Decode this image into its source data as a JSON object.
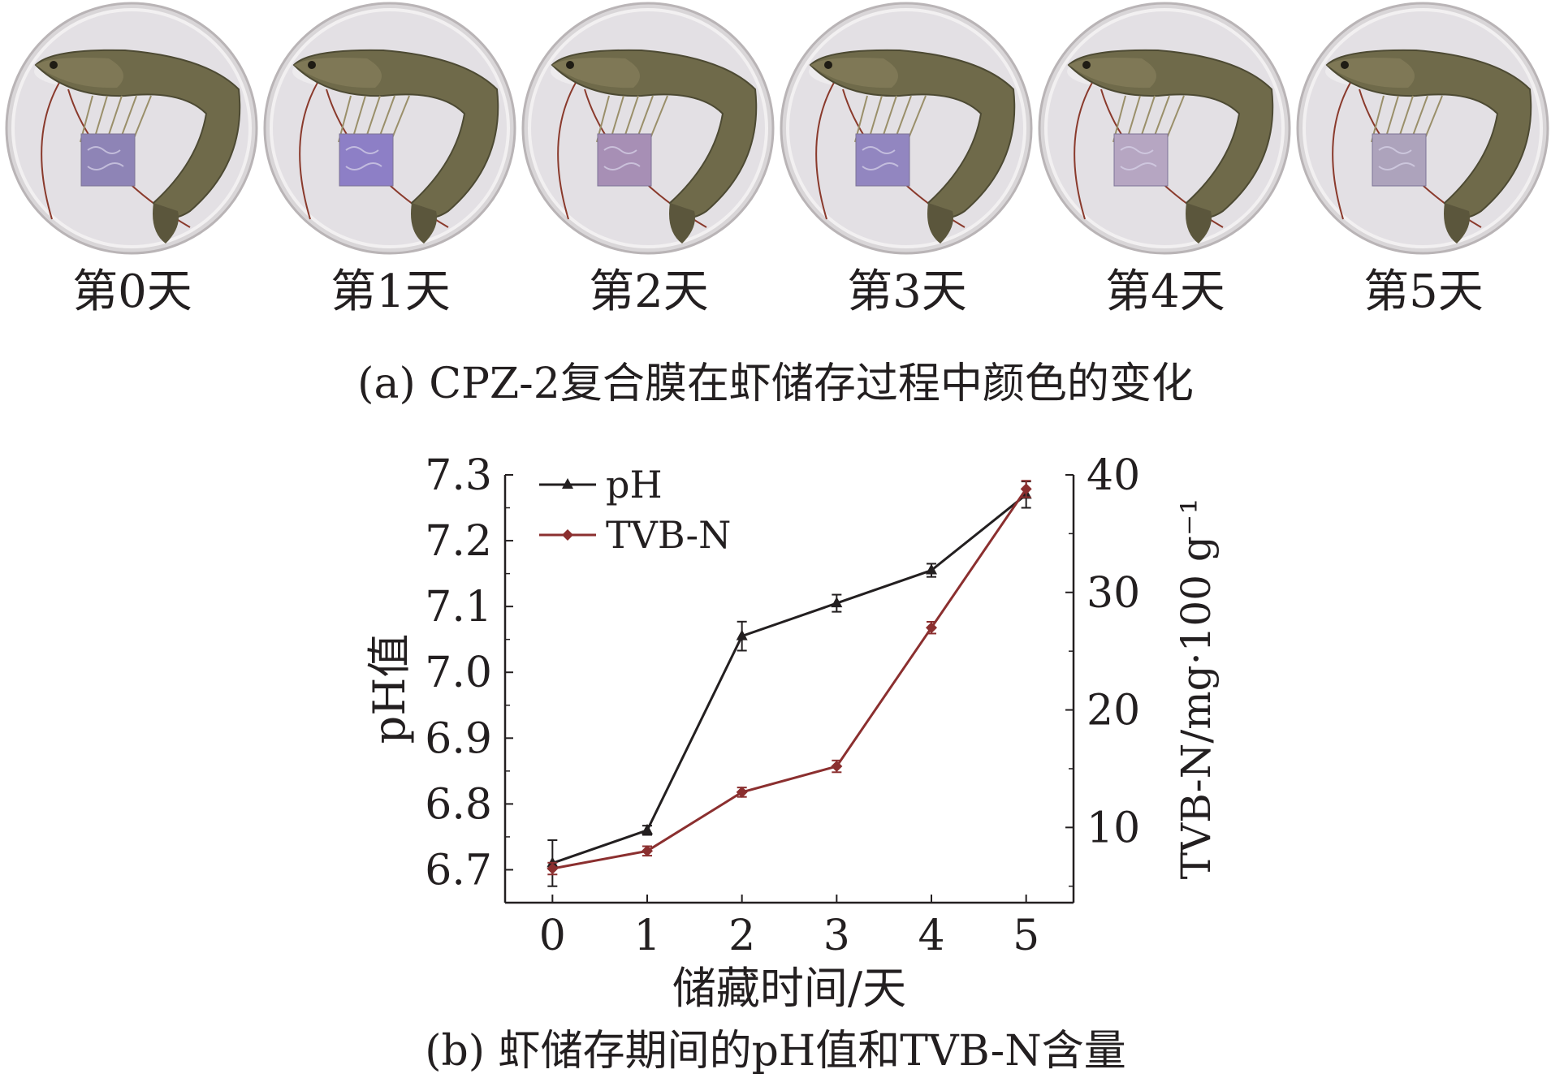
{
  "panel_a": {
    "caption": "(a) CPZ-2复合膜在虾储存过程中颜色的变化",
    "days": [
      {
        "label": "第0天",
        "film_color": "#8e84b6"
      },
      {
        "label": "第1天",
        "film_color": "#8d7fc6"
      },
      {
        "label": "第2天",
        "film_color": "#a78fb5"
      },
      {
        "label": "第3天",
        "film_color": "#9286c0"
      },
      {
        "label": "第4天",
        "film_color": "#b6a6c2"
      },
      {
        "label": "第5天",
        "film_color": "#ada3bc"
      }
    ]
  },
  "panel_b": {
    "caption": "(b) 虾储存期间的pH值和TVB-N含量"
  },
  "chart_data": {
    "type": "line",
    "x": [
      0,
      1,
      2,
      3,
      4,
      5
    ],
    "xlabel": "储藏时间/天",
    "ylabel_left": "pH值",
    "ylabel_right": "TVB-N/mg·100 g⁻¹",
    "xlim": [
      -0.5,
      5.5
    ],
    "ylim_left": [
      6.65,
      7.3
    ],
    "ylim_right": [
      3.6,
      40
    ],
    "xticks": [
      "0",
      "1",
      "2",
      "3",
      "4",
      "5"
    ],
    "yticks_left": [
      "6.7",
      "6.8",
      "6.9",
      "7.0",
      "7.1",
      "7.2",
      "7.3"
    ],
    "yticks_right": [
      "10",
      "20",
      "30",
      "40"
    ],
    "legend_position": "top-left",
    "series": [
      {
        "name": "pH",
        "axis": "left",
        "color": "#231f20",
        "marker": "triangle",
        "values": [
          6.71,
          6.76,
          7.055,
          7.105,
          7.155,
          7.27
        ],
        "errors": [
          0.035,
          0.007,
          0.022,
          0.013,
          0.01,
          0.02
        ]
      },
      {
        "name": "TVB-N",
        "axis": "right",
        "color": "#8b2f2f",
        "marker": "diamond",
        "values": [
          6.5,
          8.0,
          13.0,
          15.2,
          27.0,
          38.8
        ],
        "errors": [
          0.5,
          0.4,
          0.4,
          0.5,
          0.5,
          0.7
        ]
      }
    ]
  }
}
